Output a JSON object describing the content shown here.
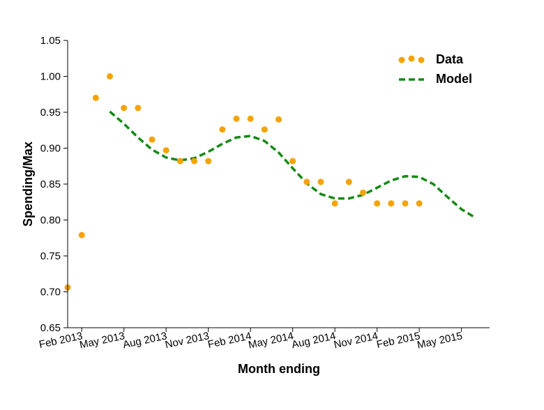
{
  "chart_data": {
    "type": "line",
    "title": "",
    "xlabel": "Month ending",
    "ylabel": "Spending/Max",
    "ylim": [
      0.65,
      1.05
    ],
    "xlim": [
      "2013-01",
      "2015-07"
    ],
    "grid": false,
    "legend_position": "top-right",
    "x_ticks": [
      "2013-02",
      "2013-05",
      "2013-08",
      "2013-11",
      "2014-02",
      "2014-05",
      "2014-08",
      "2014-11",
      "2015-02",
      "2015-05"
    ],
    "x_tick_labels": [
      "Feb 2013",
      "May 2013",
      "Aug 2013",
      "Nov 2013",
      "Feb 2014",
      "May 2014",
      "Aug 2014",
      "Nov 2014",
      "Feb 2015",
      "May 2015"
    ],
    "y_ticks": [
      0.65,
      0.7,
      0.75,
      0.8,
      0.85,
      0.9,
      0.95,
      1.0,
      1.05
    ],
    "y_tick_labels": [
      "0.65",
      "0.70",
      "0.75",
      "0.80",
      "0.85",
      "0.90",
      "0.95",
      "1.00",
      "1.05"
    ],
    "series": [
      {
        "name": "Data",
        "kind": "scatter",
        "color": "#f5a300",
        "points": [
          {
            "x": "2013-01",
            "y": 0.706
          },
          {
            "x": "2013-02",
            "y": 0.779
          },
          {
            "x": "2013-03",
            "y": 0.97
          },
          {
            "x": "2013-04",
            "y": 1.0
          },
          {
            "x": "2013-05",
            "y": 0.956
          },
          {
            "x": "2013-06",
            "y": 0.956
          },
          {
            "x": "2013-07",
            "y": 0.912
          },
          {
            "x": "2013-08",
            "y": 0.897
          },
          {
            "x": "2013-09",
            "y": 0.882
          },
          {
            "x": "2013-10",
            "y": 0.882
          },
          {
            "x": "2013-11",
            "y": 0.882
          },
          {
            "x": "2013-12",
            "y": 0.926
          },
          {
            "x": "2014-01",
            "y": 0.941
          },
          {
            "x": "2014-02",
            "y": 0.941
          },
          {
            "x": "2014-03",
            "y": 0.926
          },
          {
            "x": "2014-04",
            "y": 0.94
          },
          {
            "x": "2014-05",
            "y": 0.882
          },
          {
            "x": "2014-06",
            "y": 0.853
          },
          {
            "x": "2014-07",
            "y": 0.853
          },
          {
            "x": "2014-08",
            "y": 0.823
          },
          {
            "x": "2014-09",
            "y": 0.853
          },
          {
            "x": "2014-10",
            "y": 0.838
          },
          {
            "x": "2014-11",
            "y": 0.823
          },
          {
            "x": "2014-12",
            "y": 0.823
          },
          {
            "x": "2015-01",
            "y": 0.823
          },
          {
            "x": "2015-02",
            "y": 0.823
          }
        ]
      },
      {
        "name": "Model",
        "kind": "line",
        "style": "dashed",
        "color": "#138a13",
        "points": [
          {
            "x": "2013-04",
            "y": 0.951
          },
          {
            "x": "2013-05",
            "y": 0.934
          },
          {
            "x": "2013-06",
            "y": 0.915
          },
          {
            "x": "2013-07",
            "y": 0.898
          },
          {
            "x": "2013-08",
            "y": 0.887
          },
          {
            "x": "2013-09",
            "y": 0.883
          },
          {
            "x": "2013-10",
            "y": 0.886
          },
          {
            "x": "2013-11",
            "y": 0.895
          },
          {
            "x": "2013-12",
            "y": 0.906
          },
          {
            "x": "2014-01",
            "y": 0.915
          },
          {
            "x": "2014-02",
            "y": 0.917
          },
          {
            "x": "2014-03",
            "y": 0.91
          },
          {
            "x": "2014-04",
            "y": 0.894
          },
          {
            "x": "2014-05",
            "y": 0.872
          },
          {
            "x": "2014-06",
            "y": 0.851
          },
          {
            "x": "2014-07",
            "y": 0.836
          },
          {
            "x": "2014-08",
            "y": 0.83
          },
          {
            "x": "2014-09",
            "y": 0.83
          },
          {
            "x": "2014-10",
            "y": 0.835
          },
          {
            "x": "2014-11",
            "y": 0.845
          },
          {
            "x": "2014-12",
            "y": 0.855
          },
          {
            "x": "2015-01",
            "y": 0.861
          },
          {
            "x": "2015-02",
            "y": 0.86
          },
          {
            "x": "2015-03",
            "y": 0.85
          },
          {
            "x": "2015-04",
            "y": 0.832
          },
          {
            "x": "2015-05",
            "y": 0.815
          },
          {
            "x": "2015-06",
            "y": 0.803
          }
        ]
      }
    ]
  }
}
